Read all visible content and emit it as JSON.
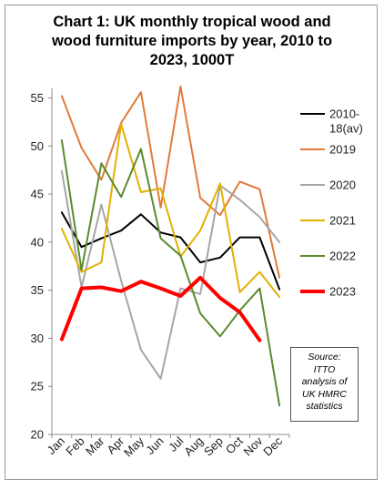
{
  "title_lines": [
    "Chart 1: UK monthly tropical wood and",
    "wood furniture imports by year, 2010 to",
    "2023, 1000T"
  ],
  "source_lines": [
    "Source:",
    "ITTO",
    "analysis of",
    "UK HMRC",
    "statistics"
  ],
  "chart_data": {
    "type": "line",
    "title": "Chart 1: UK monthly tropical wood and wood furniture imports by year, 2010 to 2023, 1000T",
    "xlabel": "",
    "ylabel": "",
    "categories": [
      "Jan",
      "Feb",
      "Mar",
      "Apr",
      "May",
      "Jun",
      "Jul",
      "Aug",
      "Sep",
      "Oct",
      "Nov",
      "Dec"
    ],
    "ylim": [
      20,
      55
    ],
    "yticks": [
      20,
      25,
      30,
      35,
      40,
      45,
      50,
      55
    ],
    "grid": false,
    "legend": "right",
    "series": [
      {
        "name": "2010-18(av)",
        "legend_lines": [
          "2010-",
          "18(av)"
        ],
        "color": "#000000",
        "width": 2,
        "values": [
          43.1,
          39.5,
          40.4,
          41.2,
          42.9,
          41.0,
          40.5,
          37.9,
          38.4,
          40.5,
          40.5,
          35.1
        ]
      },
      {
        "name": "2019",
        "legend_lines": [
          "2019"
        ],
        "color": "#e07a3a",
        "width": 2,
        "values": [
          55.2,
          49.8,
          46.5,
          52.4,
          55.6,
          43.6,
          56.2,
          44.6,
          42.8,
          46.3,
          45.5,
          36.3
        ]
      },
      {
        "name": "2020",
        "legend_lines": [
          "2020"
        ],
        "color": "#a6a6a6",
        "width": 2,
        "values": [
          47.4,
          35.3,
          43.9,
          36.0,
          28.8,
          25.8,
          35.2,
          34.6,
          45.9,
          44.4,
          42.6,
          40.0
        ]
      },
      {
        "name": "2021",
        "legend_lines": [
          "2021"
        ],
        "color": "#e3b000",
        "width": 2,
        "values": [
          41.4,
          36.9,
          37.9,
          52.3,
          45.2,
          45.6,
          38.5,
          41.2,
          46.1,
          34.8,
          36.9,
          34.3
        ]
      },
      {
        "name": "2022",
        "legend_lines": [
          "2022"
        ],
        "color": "#5b8a2e",
        "width": 2,
        "values": [
          50.6,
          37.1,
          48.2,
          44.7,
          49.7,
          40.4,
          38.6,
          32.6,
          30.2,
          32.9,
          35.2,
          23.0
        ]
      },
      {
        "name": "2023",
        "legend_lines": [
          "2023"
        ],
        "color": "#ff0000",
        "width": 4,
        "values": [
          29.9,
          35.2,
          35.3,
          34.9,
          35.9,
          35.2,
          34.4,
          36.3,
          34.2,
          32.7,
          29.8,
          null
        ]
      }
    ]
  }
}
